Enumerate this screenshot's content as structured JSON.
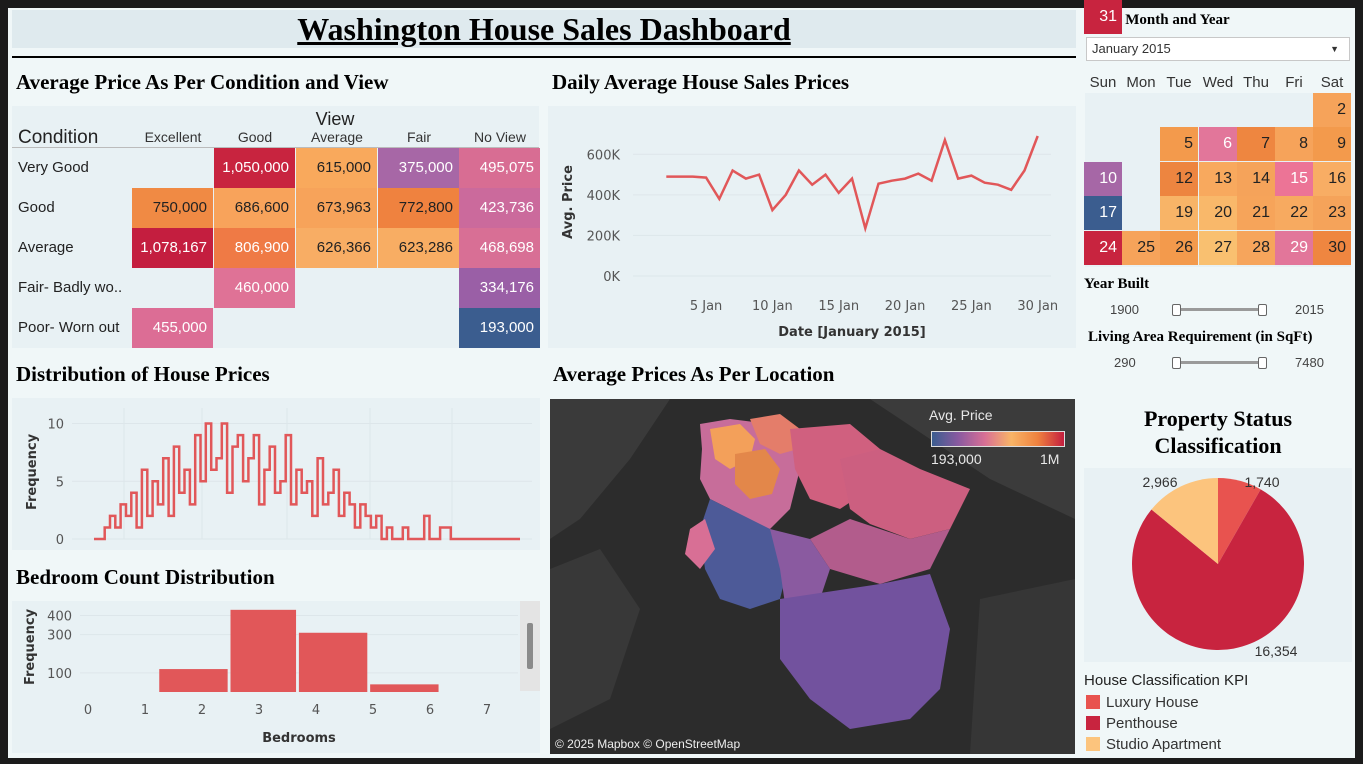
{
  "dashboard": {
    "title": "Washington House Sales Dashboard"
  },
  "heatmap": {
    "title": "Average Price As Per Condition and View",
    "row_header": "Condition",
    "col_group_header": "View",
    "columns": [
      "Excellent",
      "Good",
      "Average",
      "Fair",
      "No View"
    ],
    "rows": [
      {
        "label": "Very Good",
        "cells": [
          {
            "v": "",
            "c": ""
          },
          {
            "v": "1,050,000",
            "c": "#c8243f"
          },
          {
            "v": "615,000",
            "c": "#f9a95c"
          },
          {
            "v": "375,000",
            "c": "#a767a6"
          },
          {
            "v": "495,075",
            "c": "#d86d93"
          }
        ]
      },
      {
        "label": "Good",
        "cells": [
          {
            "v": "750,000",
            "c": "#f08a44"
          },
          {
            "v": "686,600",
            "c": "#f8a35b"
          },
          {
            "v": "673,963",
            "c": "#f7a35a"
          },
          {
            "v": "772,800",
            "c": "#ef823f"
          },
          {
            "v": "423,736",
            "c": "#cb6a9c"
          }
        ]
      },
      {
        "label": "Average",
        "cells": [
          {
            "v": "1,078,167",
            "c": "#c41e3f"
          },
          {
            "v": "806,900",
            "c": "#ef7a45"
          },
          {
            "v": "626,366",
            "c": "#f8ad64"
          },
          {
            "v": "623,286",
            "c": "#f8ad63"
          },
          {
            "v": "468,698",
            "c": "#d86f95"
          }
        ]
      },
      {
        "label": "Fair- Badly wo..",
        "cells": [
          {
            "v": "",
            "c": ""
          },
          {
            "v": "460,000",
            "c": "#df7296"
          },
          {
            "v": "",
            "c": ""
          },
          {
            "v": "",
            "c": ""
          },
          {
            "v": "334,176",
            "c": "#9a5fa6"
          }
        ]
      },
      {
        "label": "Poor- Worn out",
        "cells": [
          {
            "v": "455,000",
            "c": "#dc6d95"
          },
          {
            "v": "",
            "c": ""
          },
          {
            "v": "",
            "c": ""
          },
          {
            "v": "",
            "c": ""
          },
          {
            "v": "193,000",
            "c": "#3b5d8f"
          }
        ]
      }
    ]
  },
  "line_chart": {
    "title": "Daily Average House Sales Prices",
    "xlabel": "Date [January 2015]",
    "ylabel": "Avg. Price"
  },
  "histogram": {
    "title": "Distribution of House Prices",
    "ylabel": "Frequency"
  },
  "bedrooms": {
    "title": "Bedroom Count Distribution",
    "xlabel": "Bedrooms",
    "ylabel": "Frequency"
  },
  "map": {
    "title": "Average Prices As Per Location",
    "legend_title": "Avg. Price",
    "legend_min": "193,000",
    "legend_max": "1M",
    "attribution": "© 2025 Mapbox © OpenStreetMap"
  },
  "filters": {
    "month_label": "Select Month and Year",
    "month_value": "January 2015",
    "dropdown_icon": "chevron-down-icon",
    "year_built_label": "Year Built",
    "year_built_min": "1900",
    "year_built_max": "2015",
    "living_area_label": "Living Area Requirement (in SqFt)",
    "living_area_min": "290",
    "living_area_max": "7480"
  },
  "calendar": {
    "weekdays": [
      "Sun",
      "Mon",
      "Tue",
      "Wed",
      "Thu",
      "Fri",
      "Sat"
    ],
    "days": [
      {
        "d": "2",
        "c": "#f6a35a"
      },
      {
        "d": "5",
        "c": "#f39a4c"
      },
      {
        "d": "6",
        "c": "#e2769a"
      },
      {
        "d": "7",
        "c": "#ee8640"
      },
      {
        "d": "8",
        "c": "#f6a35a"
      },
      {
        "d": "9",
        "c": "#f39a4c"
      },
      {
        "d": "10",
        "c": "#a667a6"
      },
      {
        "d": "12",
        "c": "#ed8540"
      },
      {
        "d": "13",
        "c": "#f8a95e"
      },
      {
        "d": "14",
        "c": "#f5a35a"
      },
      {
        "d": "15",
        "c": "#ec7496"
      },
      {
        "d": "16",
        "c": "#f8ad64"
      },
      {
        "d": "17",
        "c": "#3b5d8f"
      },
      {
        "d": "19",
        "c": "#f8b467"
      },
      {
        "d": "20",
        "c": "#f9b86a"
      },
      {
        "d": "21",
        "c": "#f6a45a"
      },
      {
        "d": "22",
        "c": "#f7aa60"
      },
      {
        "d": "23",
        "c": "#f5a35a"
      },
      {
        "d": "24",
        "c": "#c8243f"
      },
      {
        "d": "25",
        "c": "#f6a35a"
      },
      {
        "d": "26",
        "c": "#f39a4c"
      },
      {
        "d": "27",
        "c": "#f9c070"
      },
      {
        "d": "28",
        "c": "#f6a55c"
      },
      {
        "d": "29",
        "c": "#e2769a"
      },
      {
        "d": "30",
        "c": "#ef8640"
      },
      {
        "d": "31",
        "c": "#c8243f"
      }
    ]
  },
  "pie": {
    "title_line1": "Property Status",
    "title_line2": "Classification",
    "legend_title": "House Classification KPI",
    "labels": [
      "2,966",
      "1,740",
      "16,354"
    ]
  },
  "chart_data": [
    {
      "type": "line",
      "title": "Daily Average House Sales Prices",
      "xlabel": "Date [January 2015]",
      "ylabel": "Avg. Price",
      "x_ticks": [
        "5 Jan",
        "10 Jan",
        "15 Jan",
        "20 Jan",
        "25 Jan",
        "30 Jan"
      ],
      "y_ticks": [
        "0K",
        "200K",
        "400K",
        "600K"
      ],
      "ylim": [
        0,
        700000
      ],
      "color": "#e15759",
      "x": [
        1,
        2,
        3,
        4,
        5,
        6,
        7,
        8,
        9,
        10,
        11,
        12,
        13,
        14,
        15,
        16,
        17,
        18,
        19,
        20,
        21,
        22,
        23,
        24,
        25,
        26,
        27,
        28,
        29,
        30,
        31
      ],
      "values": [
        null,
        490000,
        490000,
        490000,
        485000,
        380000,
        520000,
        480000,
        500000,
        325000,
        400000,
        520000,
        450000,
        500000,
        410000,
        480000,
        235000,
        455000,
        470000,
        480000,
        505000,
        470000,
        670000,
        480000,
        495000,
        460000,
        450000,
        425000,
        520000,
        690000,
        null
      ]
    },
    {
      "type": "line",
      "title": "Distribution of House Prices",
      "ylabel": "Frequency",
      "y_ticks": [
        "0",
        "5",
        "10"
      ],
      "ylim": [
        0,
        11
      ],
      "color": "#e15759",
      "series": [
        {
          "values": [
            0,
            0,
            1,
            2,
            1,
            3,
            2,
            4,
            1,
            6,
            2,
            5,
            3,
            7,
            2,
            8,
            4,
            6,
            3,
            9,
            5,
            10,
            6,
            7,
            10,
            4,
            8,
            9,
            5,
            7,
            9,
            3,
            6,
            8,
            4,
            5,
            9,
            3,
            6,
            4,
            5,
            2,
            7,
            3,
            4,
            6,
            2,
            4,
            3,
            1,
            3,
            2,
            1,
            2,
            0,
            1,
            0,
            0,
            1,
            0,
            0,
            0,
            2,
            0,
            0,
            1,
            1,
            0,
            0,
            0,
            0,
            0,
            0,
            0,
            0,
            0,
            0,
            0,
            0,
            0
          ]
        }
      ]
    },
    {
      "type": "bar",
      "title": "Bedroom Count Distribution",
      "xlabel": "Bedrooms",
      "ylabel": "Frequency",
      "x_ticks": [
        "0",
        "1",
        "2",
        "3",
        "4",
        "5",
        "6",
        "7"
      ],
      "y_ticks": [
        "100",
        "300",
        "400"
      ],
      "ylim": [
        0,
        450
      ],
      "color": "#e15759",
      "categories": [
        "2",
        "3",
        "4",
        "5"
      ],
      "values": [
        120,
        430,
        310,
        40
      ]
    },
    {
      "type": "pie",
      "title": "Property Status Classification",
      "categories": [
        "Luxury House",
        "Penthouse",
        "Studio Apartment"
      ],
      "values": [
        1740,
        16354,
        2966
      ],
      "colors": [
        "#e8534f",
        "#c8243f",
        "#fcc47d"
      ]
    }
  ]
}
